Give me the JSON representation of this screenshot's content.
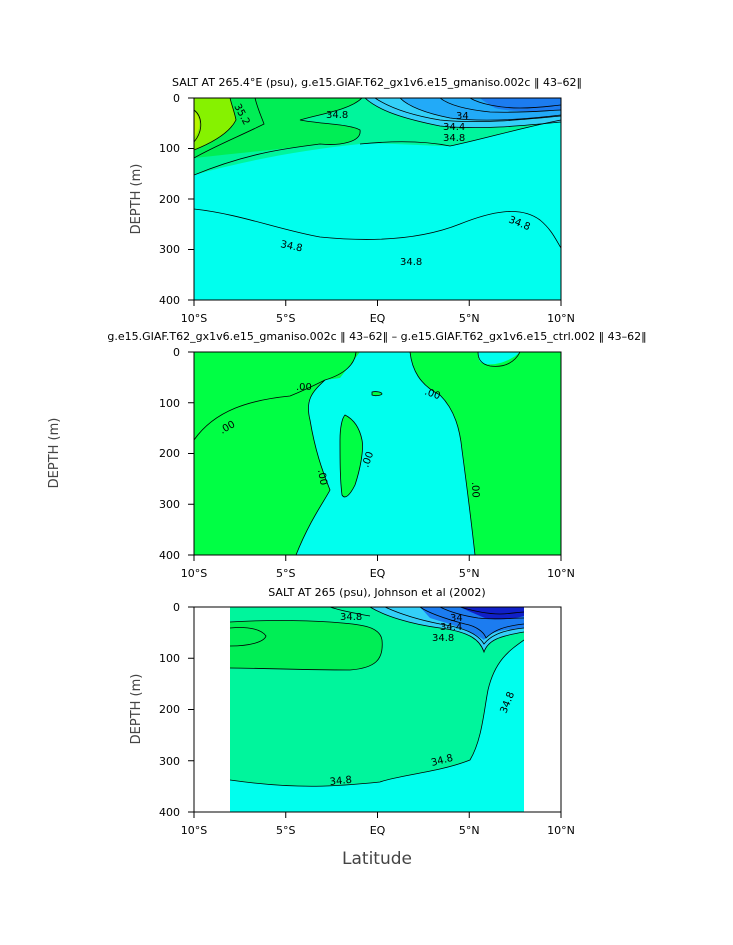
{
  "chart_data": [
    {
      "type": "contour",
      "title": "SALT AT 265.4°E (psu), g.e15.GIAF.T62_gx1v6.e15_gmaniso.002c ‖ 43–62‖",
      "xlabel": "",
      "ylabel": "DEPTH (m)",
      "xlim": [
        -10,
        10
      ],
      "ylim": [
        400,
        0
      ],
      "xticks": [
        "10°S",
        "5°S",
        "EQ",
        "5°N",
        "10°N"
      ],
      "yticks": [
        "0",
        "100",
        "200",
        "300",
        "400"
      ],
      "contour_labels": [
        "35.2",
        "34.8",
        "34",
        "34.4",
        "34.8",
        "34.8",
        "34.8",
        "34.8"
      ],
      "fill_colors": {
        "fresh_core": "#1c7cf0",
        "fresh": "#22aaf8",
        "mid_low": "#34d0f8",
        "base": "#00ffee",
        "mid": "#00f59c",
        "high": "#00ee55",
        "salty": "#86f200",
        "saltiest": "#b8f400"
      }
    },
    {
      "type": "contour",
      "title": "g.e15.GIAF.T62_gx1v6.e15_gmaniso.002c ‖ 43–62‖ – g.e15.GIAF.T62_gx1v6.e15_ctrl.002 ‖ 43–62‖",
      "xlabel": "",
      "ylabel": "DEPTH (m)",
      "xlim": [
        -10,
        10
      ],
      "ylim": [
        400,
        0
      ],
      "xticks": [
        "10°S",
        "5°S",
        "EQ",
        "5°N",
        "10°N"
      ],
      "yticks": [
        "0",
        "100",
        "200",
        "300",
        "400"
      ],
      "contour_labels": [
        ".00",
        ".00",
        ".00",
        ".00",
        ".00",
        ".00"
      ],
      "fill_colors": {
        "negative": "#00ffee",
        "positive": "#00ff44"
      }
    },
    {
      "type": "contour",
      "title": "SALT AT 265 (psu), Johnson et al (2002)",
      "xlabel": "Latitude",
      "ylabel": "DEPTH (m)",
      "xlim": [
        -10,
        10
      ],
      "ylim": [
        400,
        0
      ],
      "xticks": [
        "10°S",
        "5°S",
        "EQ",
        "5°N",
        "10°N"
      ],
      "yticks": [
        "0",
        "100",
        "200",
        "300",
        "400"
      ],
      "contour_labels": [
        "34.8",
        "34",
        "34.4",
        "34.8",
        "34.8",
        "34.8",
        "34.8"
      ],
      "fill_colors": {
        "fresh_core": "#1020c8",
        "fresh": "#1c7cf0",
        "mid_low": "#34d0f8",
        "base": "#00ffee",
        "mid": "#00f59c",
        "high": "#00ee55"
      }
    }
  ]
}
